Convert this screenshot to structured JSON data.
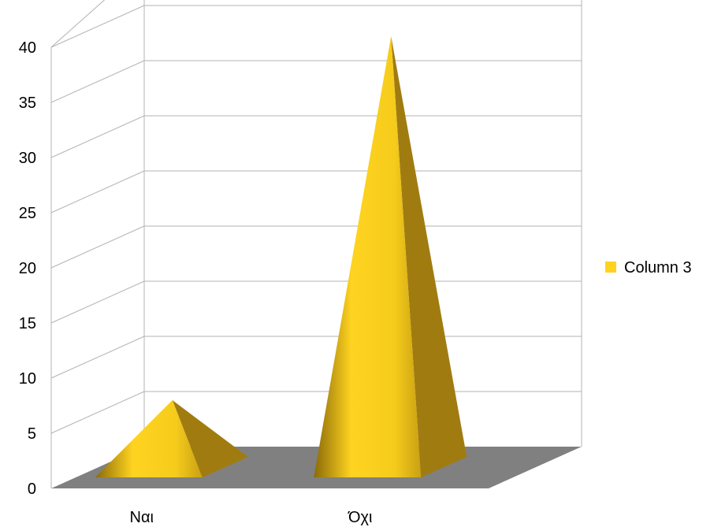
{
  "chart_data": {
    "type": "bar",
    "shape": "3d-pyramid",
    "categories": [
      "Ναι",
      "Όχι"
    ],
    "series": [
      {
        "name": "Column 3",
        "values": [
          7,
          40
        ],
        "color": "#ffd320"
      }
    ],
    "ylim": [
      0,
      40
    ],
    "yticks": [
      0,
      5,
      10,
      15,
      20,
      25,
      30,
      35,
      40
    ],
    "grid": true,
    "legend": "right",
    "colors": {
      "floor": "#808080",
      "grid": "#b3b3b3",
      "series": "#ffd320",
      "series_dark": "#a07c10"
    }
  }
}
